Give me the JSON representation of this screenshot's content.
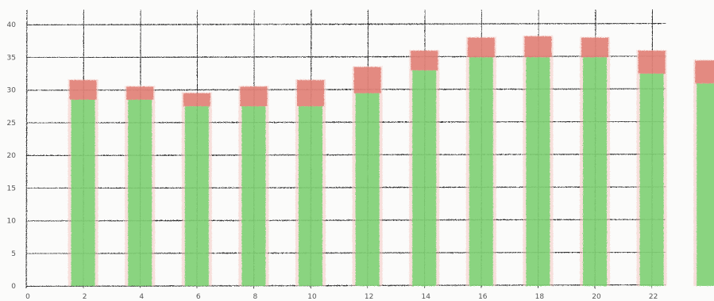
{
  "chart_data": {
    "type": "bar",
    "style": "hand-drawn colored pencil on paper, stacked bars",
    "x_ticks": [
      "0",
      "2",
      "4",
      "6",
      "8",
      "10",
      "12",
      "14",
      "16",
      "18",
      "20",
      "22"
    ],
    "y_ticks": [
      "0",
      "5",
      "10",
      "15",
      "20",
      "25",
      "30",
      "35",
      "40"
    ],
    "xlim": [
      0,
      24
    ],
    "ylim": [
      0,
      42
    ],
    "grid": true,
    "x": [
      2,
      4,
      6,
      8,
      10,
      12,
      14,
      16,
      18,
      20,
      22,
      24
    ],
    "series": [
      {
        "color": "#6fd26a",
        "values": [
          28.5,
          28.5,
          27.5,
          27.5,
          27.5,
          29.5,
          33,
          35,
          35,
          35,
          32.5,
          31
        ]
      },
      {
        "color": "#e07b72",
        "values": [
          3,
          2,
          2,
          3,
          4,
          4,
          3,
          3,
          3.2,
          3,
          3.5,
          3.5
        ]
      }
    ]
  }
}
